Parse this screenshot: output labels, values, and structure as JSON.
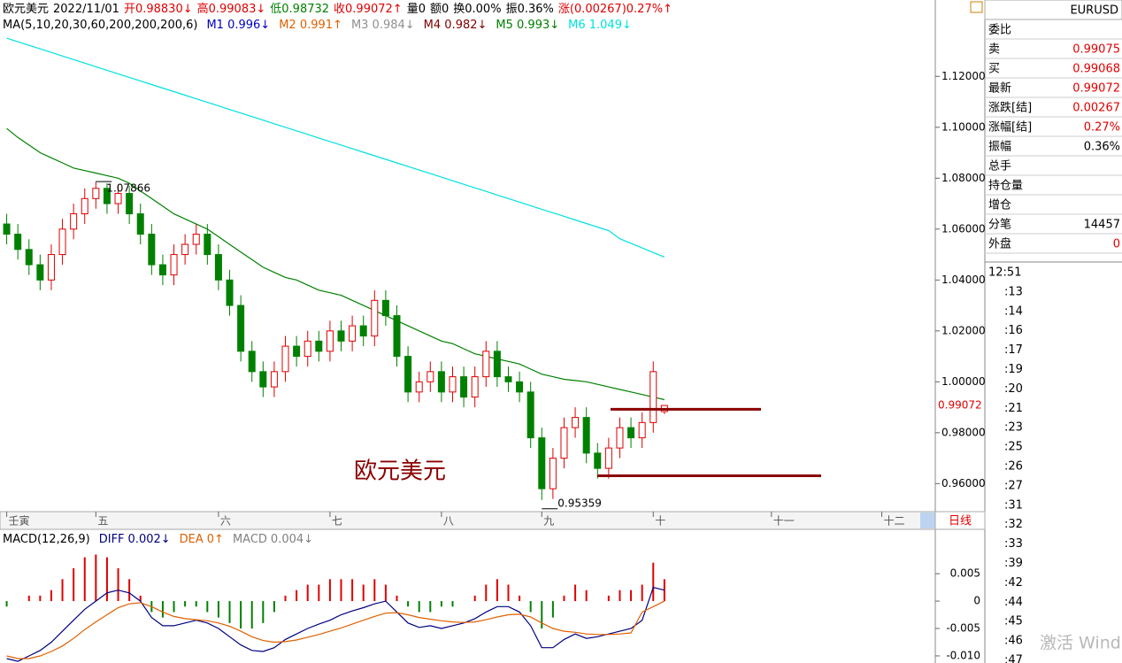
{
  "header": {
    "parts": [
      {
        "text": "欧元美元",
        "color": "#000000"
      },
      {
        "text": "2022/11/01",
        "color": "#000000"
      },
      {
        "text": "开0.98830↓",
        "color": "#e00000"
      },
      {
        "text": "高0.99083↓",
        "color": "#e00000"
      },
      {
        "text": "低0.98732",
        "color": "#008000"
      },
      {
        "text": "收0.99072↑",
        "color": "#e00000"
      },
      {
        "text": "量0",
        "color": "#000000"
      },
      {
        "text": "额0",
        "color": "#000000"
      },
      {
        "text": "换0.00%",
        "color": "#000000"
      },
      {
        "text": "振0.36%",
        "color": "#000000"
      },
      {
        "text": "涨(0.00267)0.27%↑",
        "color": "#e00000"
      }
    ],
    "ma_title": "MA(5,10,20,30,60,200,200,200,6)",
    "ma_legend": [
      {
        "text": "M1 0.996↓",
        "color": "#0000c0"
      },
      {
        "text": "M2 0.991↑",
        "color": "#e06000"
      },
      {
        "text": "M3 0.984↓",
        "color": "#909090"
      },
      {
        "text": "M4 0.982↓",
        "color": "#800000"
      },
      {
        "text": "M5 0.993↓",
        "color": "#008000"
      },
      {
        "text": "M6 1.049↓",
        "color": "#00e0e0"
      }
    ]
  },
  "chart_data": [
    {
      "type": "candlestick",
      "annotation": "欧元美元",
      "period_tab": "日线",
      "xlim": [
        -0.6,
        83.3
      ],
      "xticks": [
        {
          "value": 0,
          "label": "壬寅"
        },
        {
          "value": 8,
          "label": "五"
        },
        {
          "value": 19,
          "label": "六"
        },
        {
          "value": 29,
          "label": "七"
        },
        {
          "value": 39,
          "label": "八"
        },
        {
          "value": 48,
          "label": "九"
        },
        {
          "value": 58,
          "label": "十"
        },
        {
          "value": 68.6,
          "label": "十一"
        },
        {
          "value": 78.5,
          "label": "十二"
        }
      ],
      "ylim": [
        0.949,
        1.15
      ],
      "yticks": [
        {
          "value": 0.96,
          "label": "0.96000"
        },
        {
          "value": 0.98,
          "label": "0.98000"
        },
        {
          "value": 1.0,
          "label": "1.00000"
        },
        {
          "value": 1.02,
          "label": "1.02000"
        },
        {
          "value": 1.04,
          "label": "1.04000"
        },
        {
          "value": 1.06,
          "label": "1.06000"
        },
        {
          "value": 1.08,
          "label": "1.08000"
        },
        {
          "value": 1.1,
          "label": "1.10000"
        },
        {
          "value": 1.12,
          "label": "1.12000"
        }
      ],
      "up_color": "#e00000",
      "down_color": "#008000",
      "level_color": "#8b0000",
      "levels": [
        0.9892,
        0.9631
      ],
      "open": [
        1.062,
        1.058,
        1.052,
        1.046,
        1.04,
        1.05,
        1.06,
        1.066,
        1.072,
        1.076,
        1.07,
        1.074,
        1.066,
        1.058,
        1.046,
        1.042,
        1.05,
        1.054,
        1.058,
        1.05,
        1.04,
        1.03,
        1.012,
        1.004,
        0.998,
        1.004,
        1.014,
        1.01,
        1.016,
        1.012,
        1.02,
        1.016,
        1.022,
        1.018,
        1.032,
        1.026,
        1.01,
        0.996,
        1.0,
        1.004,
        0.996,
        1.002,
        0.994,
        1.002,
        1.012,
        1.002,
        1.0,
        0.996,
        0.978,
        0.958,
        0.97,
        0.982,
        0.986,
        0.972,
        0.966,
        0.974,
        0.982,
        0.978,
        0.984,
        0.9883
      ],
      "high": [
        1.066,
        1.062,
        1.056,
        1.05,
        1.054,
        1.064,
        1.07,
        1.076,
        1.07866,
        1.078,
        1.0775,
        1.077,
        1.07,
        1.062,
        1.05,
        1.054,
        1.058,
        1.062,
        1.062,
        1.054,
        1.044,
        1.034,
        1.016,
        1.008,
        1.008,
        1.018,
        1.018,
        1.02,
        1.02,
        1.024,
        1.024,
        1.026,
        1.026,
        1.036,
        1.036,
        1.03,
        1.014,
        1.004,
        1.008,
        1.008,
        1.006,
        1.006,
        1.006,
        1.016,
        1.016,
        1.006,
        1.004,
        1.0,
        0.982,
        0.974,
        0.986,
        0.99,
        0.99,
        0.976,
        0.978,
        0.986,
        0.986,
        0.988,
        1.008,
        0.99083
      ],
      "low": [
        1.054,
        1.048,
        1.042,
        1.036,
        1.036,
        1.046,
        1.056,
        1.062,
        1.068,
        1.066,
        1.066,
        1.062,
        1.054,
        1.042,
        1.038,
        1.038,
        1.046,
        1.05,
        1.046,
        1.036,
        1.026,
        1.008,
        1.0,
        0.994,
        0.994,
        1.0,
        1.006,
        1.006,
        1.008,
        1.008,
        1.012,
        1.012,
        1.014,
        1.014,
        1.022,
        1.006,
        0.992,
        0.992,
        0.996,
        0.992,
        0.992,
        0.99,
        0.99,
        0.998,
        0.998,
        0.996,
        0.992,
        0.974,
        0.95359,
        0.954,
        0.966,
        0.978,
        0.968,
        0.962,
        0.962,
        0.97,
        0.974,
        0.974,
        0.98,
        0.98732
      ],
      "close": [
        1.058,
        1.052,
        1.046,
        1.04,
        1.05,
        1.06,
        1.066,
        1.072,
        1.076,
        1.07,
        1.074,
        1.066,
        1.058,
        1.046,
        1.042,
        1.05,
        1.054,
        1.058,
        1.05,
        1.04,
        1.03,
        1.012,
        1.004,
        0.998,
        1.004,
        1.014,
        1.01,
        1.016,
        1.012,
        1.02,
        1.016,
        1.022,
        1.018,
        1.032,
        1.026,
        1.01,
        0.996,
        1.0,
        1.004,
        0.996,
        1.002,
        0.994,
        1.002,
        1.012,
        1.002,
        1.0,
        0.996,
        0.978,
        0.958,
        0.97,
        0.982,
        0.986,
        0.972,
        0.966,
        0.974,
        0.982,
        0.978,
        0.984,
        1.004,
        0.99072
      ],
      "series": [
        {
          "color": "#00e0e0",
          "values": [
            1.135,
            1.1336,
            1.1322,
            1.1308,
            1.1294,
            1.128,
            1.1266,
            1.1252,
            1.1238,
            1.1224,
            1.121,
            1.1196,
            1.1182,
            1.1168,
            1.1154,
            1.114,
            1.1126,
            1.1112,
            1.1098,
            1.1084,
            1.107,
            1.1056,
            1.1042,
            1.1028,
            1.1014,
            1.1,
            1.0986,
            1.0972,
            1.0958,
            1.0944,
            1.093,
            1.0916,
            1.0902,
            1.0888,
            1.0874,
            1.086,
            1.0846,
            1.0832,
            1.0818,
            1.0804,
            1.079,
            1.0776,
            1.0762,
            1.0748,
            1.0734,
            1.072,
            1.0706,
            1.0692,
            1.0678,
            1.0664,
            1.065,
            1.0636,
            1.0622,
            1.0608,
            1.0594,
            1.0562,
            1.0544,
            1.0526,
            1.0508,
            1.049
          ]
        },
        {
          "color": "#008000",
          "values": [
            1.0995,
            1.096,
            1.093,
            1.09,
            1.088,
            1.086,
            1.084,
            1.083,
            1.082,
            1.081,
            1.08,
            1.078,
            1.075,
            1.072,
            1.069,
            1.066,
            1.064,
            1.062,
            1.06,
            1.057,
            1.054,
            1.051,
            1.048,
            1.045,
            1.043,
            1.041,
            1.04,
            1.038,
            1.036,
            1.035,
            1.034,
            1.032,
            1.03,
            1.028,
            1.026,
            1.024,
            1.022,
            1.02,
            1.018,
            1.016,
            1.015,
            1.013,
            1.011,
            1.01,
            1.009,
            1.008,
            1.007,
            1.005,
            1.003,
            1.002,
            1.001,
            1.0005,
            1.0,
            0.999,
            0.998,
            0.997,
            0.996,
            0.995,
            0.994,
            0.993
          ]
        }
      ]
    },
    {
      "type": "macd",
      "title": "MACD(12,26,9)",
      "xlim": [
        -0.6,
        83.3
      ],
      "ylim": [
        -0.0113,
        0.0131
      ],
      "yticks": [
        {
          "value": -0.01,
          "label": "-0.010"
        },
        {
          "value": -0.005,
          "label": "-0.005"
        },
        0,
        0.005
      ],
      "up_color": "#e00000",
      "down_color": "#008000",
      "series": [
        {
          "name": "DIFF",
          "label": "0.002↓",
          "color": "#000080",
          "values": [
            -0.0105,
            -0.011,
            -0.01,
            -0.009,
            -0.0075,
            -0.0055,
            -0.0035,
            -0.0015,
            0.0,
            0.0015,
            0.002,
            0.0015,
            0.0,
            -0.003,
            -0.0045,
            -0.0045,
            -0.004,
            -0.0035,
            -0.004,
            -0.005,
            -0.0065,
            -0.008,
            -0.009,
            -0.0092,
            -0.0085,
            -0.007,
            -0.006,
            -0.005,
            -0.0042,
            -0.0035,
            -0.0025,
            -0.0018,
            -0.0012,
            -0.0005,
            0.0,
            -0.002,
            -0.004,
            -0.0048,
            -0.0045,
            -0.005,
            -0.0045,
            -0.004,
            -0.0032,
            -0.002,
            -0.001,
            -0.001,
            -0.002,
            -0.0045,
            -0.0085,
            -0.0085,
            -0.007,
            -0.006,
            -0.0068,
            -0.0065,
            -0.006,
            -0.0055,
            -0.005,
            -0.0035,
            0.0025,
            0.002
          ]
        },
        {
          "name": "DEA",
          "label": "0↑",
          "color": "#e06000",
          "values": [
            -0.01,
            -0.0105,
            -0.0105,
            -0.01,
            -0.0092,
            -0.0082,
            -0.0068,
            -0.0052,
            -0.0038,
            -0.0025,
            -0.0012,
            -0.0005,
            -0.0003,
            -0.001,
            -0.002,
            -0.0028,
            -0.0032,
            -0.0034,
            -0.0036,
            -0.004,
            -0.0046,
            -0.0055,
            -0.0065,
            -0.0072,
            -0.0075,
            -0.0074,
            -0.0071,
            -0.0066,
            -0.0061,
            -0.0055,
            -0.0049,
            -0.0042,
            -0.0035,
            -0.0028,
            -0.0022,
            -0.0021,
            -0.0025,
            -0.003,
            -0.0033,
            -0.0036,
            -0.0038,
            -0.0039,
            -0.0038,
            -0.0034,
            -0.0029,
            -0.0025,
            -0.0024,
            -0.0029,
            -0.004,
            -0.005,
            -0.0055,
            -0.0057,
            -0.006,
            -0.0061,
            -0.0061,
            -0.006,
            -0.0058,
            -0.002,
            -0.001,
            0.0
          ]
        },
        {
          "name": "MACD",
          "label": "0.004↓",
          "color": "#808080",
          "values": [
            -0.001,
            0.0,
            0.001,
            0.001,
            0.002,
            0.004,
            0.006,
            0.008,
            0.0085,
            0.008,
            0.006,
            0.004,
            0.001,
            -0.002,
            -0.003,
            -0.002,
            -0.001,
            -0.001,
            -0.002,
            -0.003,
            -0.004,
            -0.005,
            -0.005,
            -0.004,
            -0.002,
            0.001,
            0.002,
            0.003,
            0.003,
            0.004,
            0.004,
            0.004,
            0.003,
            0.004,
            0.003,
            0.001,
            -0.001,
            -0.002,
            -0.002,
            -0.001,
            -0.001,
            0.0,
            0.001,
            0.003,
            0.004,
            0.003,
            0.001,
            -0.002,
            -0.005,
            -0.003,
            0.001,
            0.003,
            0.002,
            0.0,
            0.001,
            0.002,
            0.002,
            0.003,
            0.007,
            0.004
          ]
        }
      ]
    }
  ],
  "side_panel": {
    "symbol": "EURUSD",
    "rows": [
      {
        "label": "委比"
      },
      {
        "label": "卖",
        "value": "0.99075",
        "color": "#e00000"
      },
      {
        "label": "买",
        "value": "0.99068",
        "color": "#e00000"
      },
      {
        "label": "最新",
        "value": "0.99072",
        "color": "#e00000"
      },
      {
        "label": "涨跌[结]",
        "value": "0.00267",
        "color": "#e00000"
      },
      {
        "label": "涨幅[结]",
        "value": "0.27%",
        "color": "#e00000"
      },
      {
        "label": "振幅",
        "value": "0.36%",
        "color": "#000000"
      },
      {
        "label": "总手"
      },
      {
        "label": "持仓量"
      },
      {
        "label": "增仓"
      },
      {
        "label": "分笔",
        "value": "14457",
        "color": "#000000"
      },
      {
        "label": "外盘",
        "value": "0",
        "color": "#e00000"
      }
    ],
    "times": [
      "12:51",
      ":13",
      ":14",
      ":16",
      ":17",
      ":19",
      ":20",
      ":21",
      ":23",
      ":25",
      ":26",
      ":27",
      ":31",
      ":32",
      ":33",
      ":39",
      ":42",
      ":44",
      ":45",
      ":46",
      ":47"
    ],
    "watermark": "激活 Wind"
  }
}
